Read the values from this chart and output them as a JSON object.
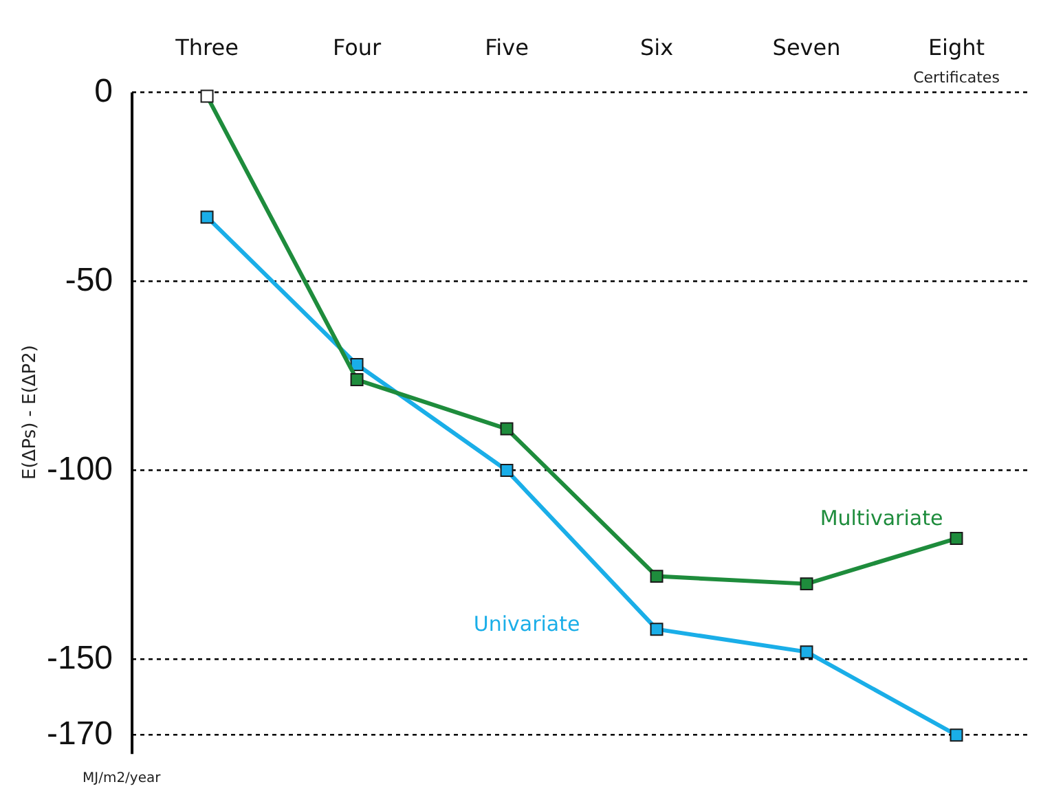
{
  "chart_data": {
    "type": "line",
    "xlabel": "Certificates",
    "ylabel": "E(ΔPs) - E(ΔP2)",
    "annotations": [
      "MJ/m2/year"
    ],
    "categories": [
      "Three",
      "Four",
      "Five",
      "Six",
      "Seven",
      "Eight"
    ],
    "series": [
      {
        "name": "Multivariate",
        "color": "#1e8c3c",
        "colors": [
          "#ffffff",
          "#1e8c3c",
          "#1e8c3c",
          "#1e8c3c",
          "#1e8c3c",
          "#1e8c3c"
        ],
        "values": [
          -1,
          -76,
          -89,
          -128,
          -130,
          -118
        ]
      },
      {
        "name": "Univariate",
        "color": "#1aaee8",
        "values": [
          -33,
          -72,
          -100,
          -142,
          -148,
          -170
        ]
      }
    ],
    "ylim": [
      -175,
      0
    ],
    "yticks": [
      0,
      -50,
      -100,
      -150,
      -170
    ],
    "grid": "y",
    "legend": false,
    "marker": "square",
    "line_style": "solid"
  }
}
